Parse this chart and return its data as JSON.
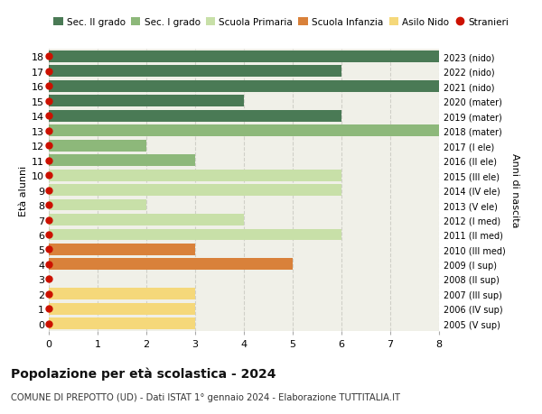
{
  "ages": [
    18,
    17,
    16,
    15,
    14,
    13,
    12,
    11,
    10,
    9,
    8,
    7,
    6,
    5,
    4,
    3,
    2,
    1,
    0
  ],
  "years": [
    "2005 (V sup)",
    "2006 (IV sup)",
    "2007 (III sup)",
    "2008 (II sup)",
    "2009 (I sup)",
    "2010 (III med)",
    "2011 (II med)",
    "2012 (I med)",
    "2013 (V ele)",
    "2014 (IV ele)",
    "2015 (III ele)",
    "2016 (II ele)",
    "2017 (I ele)",
    "2018 (mater)",
    "2019 (mater)",
    "2020 (mater)",
    "2021 (nido)",
    "2022 (nido)",
    "2023 (nido)"
  ],
  "values": [
    8,
    6,
    8,
    4,
    6,
    8,
    2,
    3,
    6,
    6,
    2,
    4,
    6,
    3,
    5,
    0,
    3,
    3,
    3
  ],
  "colors": [
    "#4a7a55",
    "#4a7a55",
    "#4a7a55",
    "#4a7a55",
    "#4a7a55",
    "#8db87a",
    "#8db87a",
    "#8db87a",
    "#c8e0a8",
    "#c8e0a8",
    "#c8e0a8",
    "#c8e0a8",
    "#c8e0a8",
    "#d9813a",
    "#d9813a",
    "#d9813a",
    "#f5d87a",
    "#f5d87a",
    "#f5d87a"
  ],
  "stranieri_dot_color": "#cc1100",
  "legend_labels": [
    "Sec. II grado",
    "Sec. I grado",
    "Scuola Primaria",
    "Scuola Infanzia",
    "Asilo Nido",
    "Stranieri"
  ],
  "legend_colors": [
    "#4a7a55",
    "#8db87a",
    "#c8e0a8",
    "#d9813a",
    "#f5d87a",
    "#cc1100"
  ],
  "title": "Popolazione per età scolastica - 2024",
  "subtitle": "COMUNE DI PREPOTTO (UD) - Dati ISTAT 1° gennaio 2024 - Elaborazione TUTTITALIA.IT",
  "ylabel_left": "Età alunni",
  "ylabel_right": "Anni di nascita",
  "xlim": [
    0,
    8
  ],
  "xticks": [
    0,
    1,
    2,
    3,
    4,
    5,
    6,
    7,
    8
  ],
  "bg_color": "#f0f0e8",
  "grid_color": "#d0d0c8",
  "fig_bg": "#ffffff"
}
